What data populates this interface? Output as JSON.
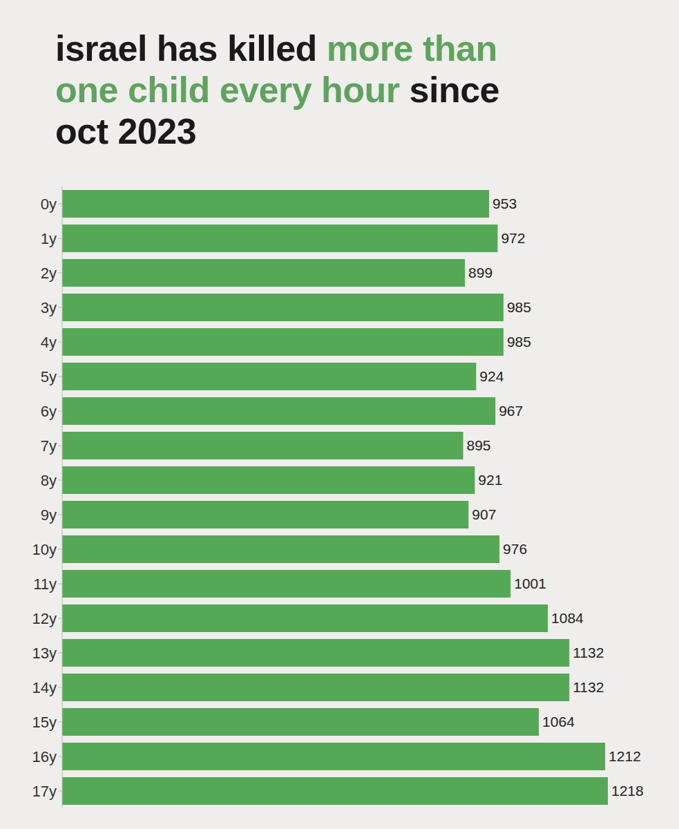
{
  "chart_data": {
    "type": "bar",
    "title": "israel has killed more than one child every hour since oct 2023",
    "orientation": "horizontal",
    "categories": [
      "0y",
      "1y",
      "2y",
      "3y",
      "4y",
      "5y",
      "6y",
      "7y",
      "8y",
      "9y",
      "10y",
      "11y",
      "12y",
      "13y",
      "14y",
      "15y",
      "16y",
      "17y"
    ],
    "values": [
      953,
      972,
      899,
      985,
      985,
      924,
      967,
      895,
      921,
      907,
      976,
      1001,
      1084,
      1132,
      1132,
      1064,
      1212,
      1218
    ],
    "color": "#55a855",
    "data_labels": true,
    "tick_labels": "y"
  }
}
